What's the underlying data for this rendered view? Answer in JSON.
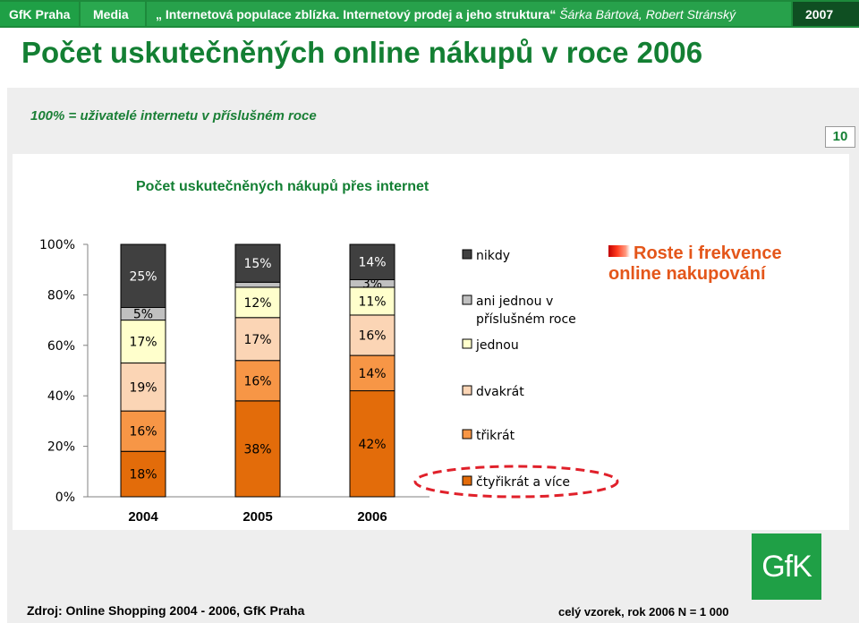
{
  "header": {
    "brand": "GfK Praha",
    "section": "Media",
    "title_quoted": "„ Internetová populace zblízka. Internetový prodej a jeho struktura“",
    "authors": "Šárka Bártová, Robert Stránský",
    "year": "2007"
  },
  "page": {
    "title": "Počet uskutečněných online nákupů v roce 2006",
    "subtitle": "100% = uživatelé internetu v příslušném roce",
    "page_number": "10"
  },
  "annotation": {
    "text": "Roste i frekvence online nakupování"
  },
  "footer": {
    "source": "Zdroj: Online Shopping 2004 - 2006, GfK Praha",
    "sample": "celý vzorek, rok 2006  N = 1 000"
  },
  "logo": {
    "text": "GfK"
  },
  "colors": {
    "brand_green": "#1fa046",
    "title_green": "#137f33",
    "annotation_orange": "#e4561a",
    "highlight_red": "#e0202a"
  },
  "chart_data": {
    "type": "bar",
    "stacked": true,
    "title": "Počet uskutečněných nákupů přes internet",
    "categories": [
      "2004",
      "2005",
      "2006"
    ],
    "ylim": [
      0,
      100
    ],
    "yticks": [
      "0%",
      "20%",
      "40%",
      "60%",
      "80%",
      "100%"
    ],
    "series": [
      {
        "name": "čtyřikrát a více",
        "color": "#e36c0a",
        "values": [
          18,
          38,
          42
        ],
        "labels": [
          "18%",
          "38%",
          "42%"
        ]
      },
      {
        "name": "třikrát",
        "color": "#f79646",
        "values": [
          16,
          16,
          14
        ],
        "labels": [
          "16%",
          "16%",
          "14%"
        ]
      },
      {
        "name": "dvakrát",
        "color": "#fbd5b5",
        "values": [
          19,
          17,
          16
        ],
        "labels": [
          "19%",
          "17%",
          "16%"
        ]
      },
      {
        "name": "jednou",
        "color": "#ffffcc",
        "values": [
          17,
          12,
          11
        ],
        "labels": [
          "17%",
          "12%",
          "11%"
        ]
      },
      {
        "name": "ani jednou v příslušném roce",
        "color": "#c0c0c0",
        "values": [
          5,
          2,
          3
        ],
        "labels": [
          "5%",
          "",
          "3%"
        ]
      },
      {
        "name": "nikdy",
        "color": "#404040",
        "values": [
          25,
          15,
          14
        ],
        "labels": [
          "25%",
          "15%",
          "14%"
        ]
      }
    ],
    "legend_order": [
      "nikdy",
      "ani jednou v příslušném roce",
      "jednou",
      "dvakrát",
      "třikrát",
      "čtyřikrát a více"
    ],
    "highlighted_legend_item": "čtyřikrát a více",
    "legend_position": "right"
  }
}
